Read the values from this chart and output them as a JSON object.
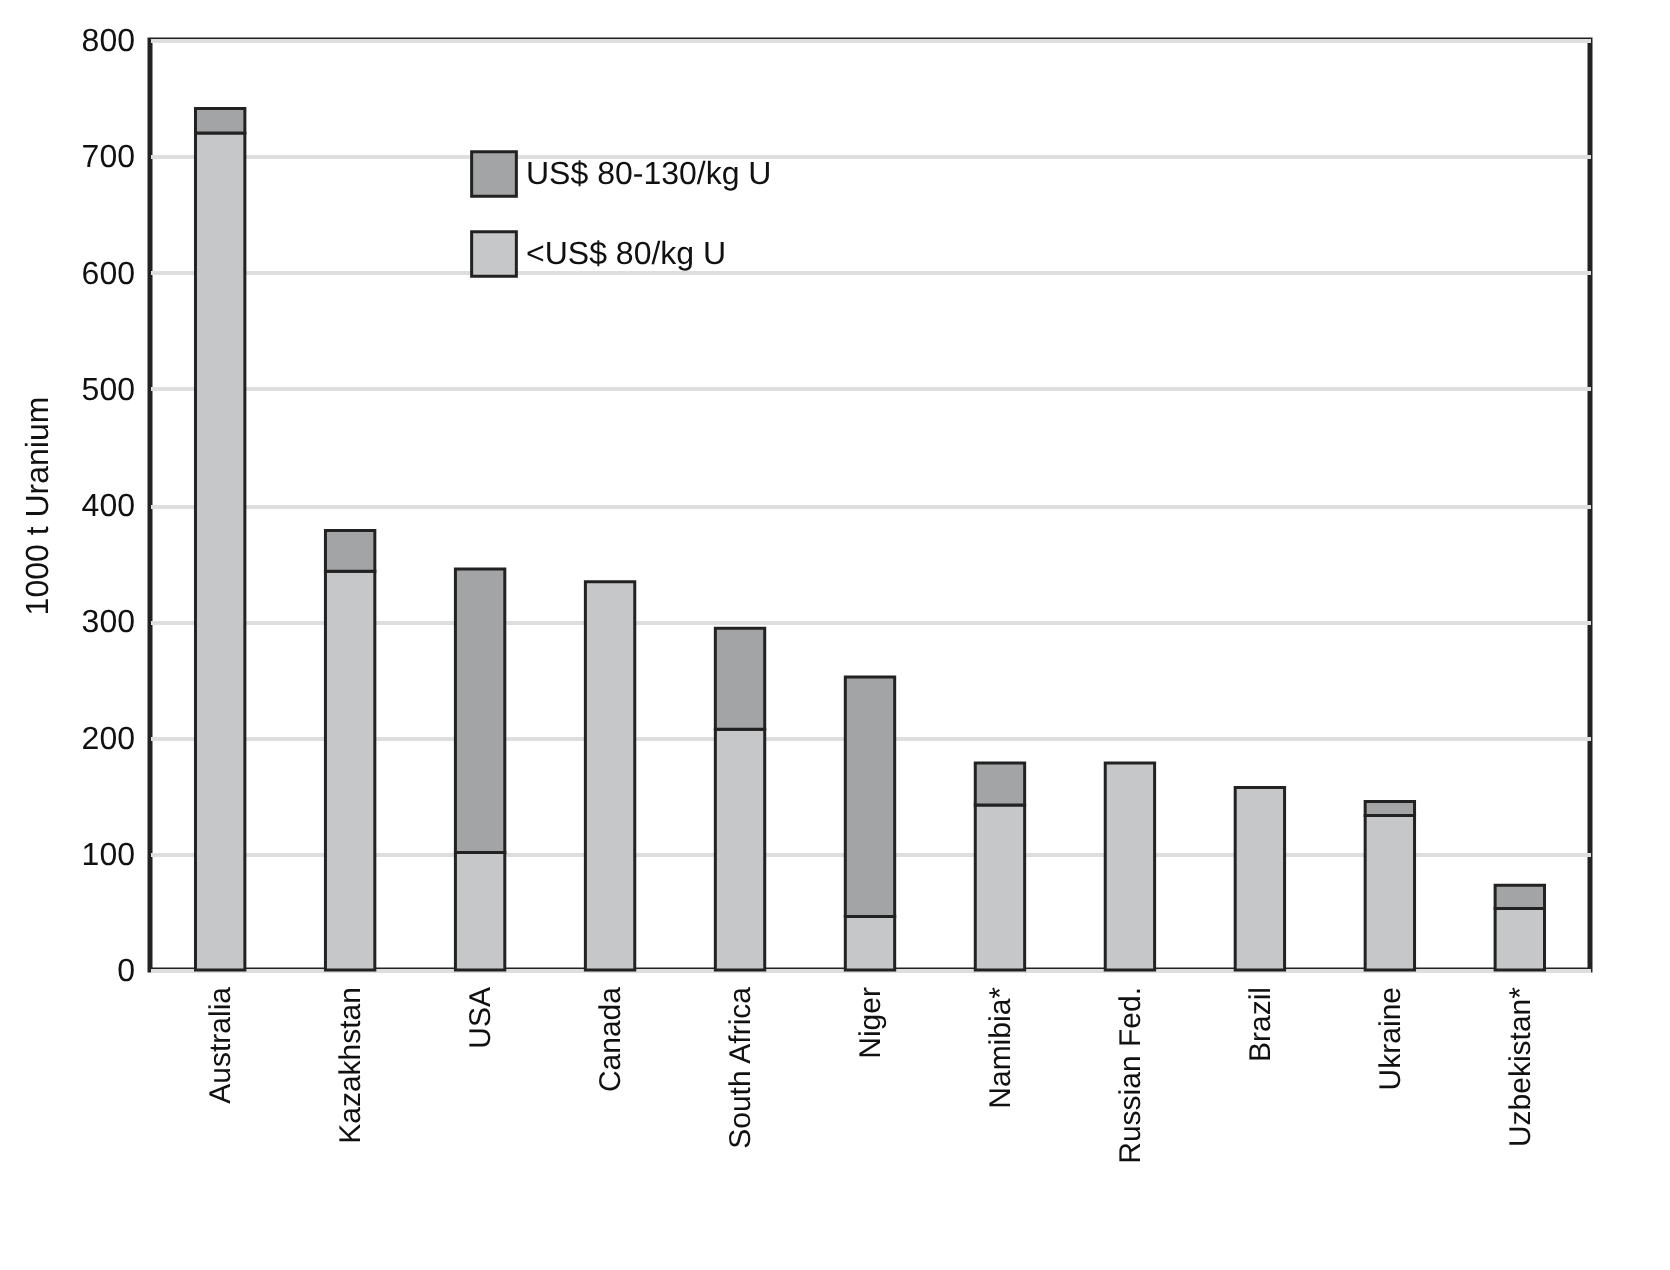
{
  "chart_data": {
    "type": "bar",
    "stacked": true,
    "ylabel": "1000 t Uranium",
    "categories": [
      "Australia",
      "Kazakhstan",
      "USA",
      "Canada",
      "South Africa",
      "Niger",
      "Namibia*",
      "Russian Fed.",
      "Brazil",
      "Ukraine",
      "Uzbekistan*"
    ],
    "series": [
      {
        "name": "<US$ 80/kg U",
        "color": "#c6c7c9",
        "values": [
          720,
          343,
          101,
          334,
          207,
          46,
          142,
          178,
          157,
          133,
          53
        ]
      },
      {
        "name": "US$ 80-130/kg U",
        "color": "#a3a4a6",
        "values": [
          21,
          35,
          244,
          null,
          87,
          206,
          36,
          null,
          null,
          12,
          20
        ]
      }
    ],
    "ylim": [
      0,
      800
    ],
    "yticks": [
      0,
      100,
      200,
      300,
      400,
      500,
      600,
      700,
      800
    ],
    "grid": "y",
    "legend": "top"
  }
}
